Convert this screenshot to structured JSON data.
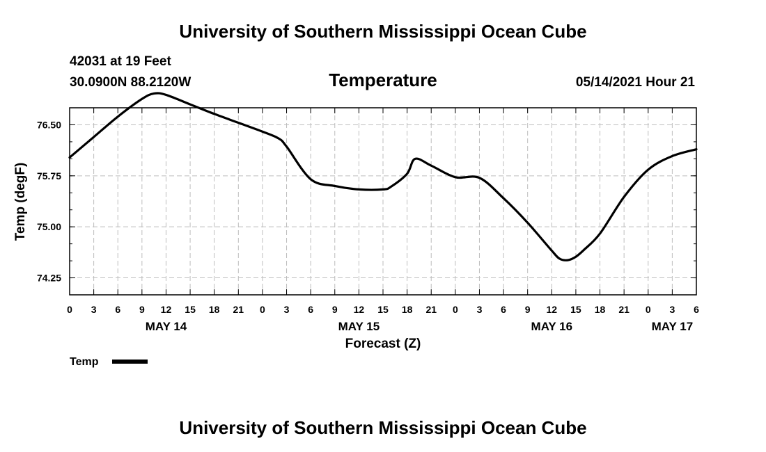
{
  "header": {
    "title_top": "University of Southern Mississippi Ocean Cube",
    "station": "42031 at 19 Feet",
    "coords": "30.0900N  88.2120W",
    "valid": "05/14/2021 Hour 21",
    "title_bottom": "University of Southern Mississippi Ocean Cube"
  },
  "chart_data": {
    "type": "line",
    "title": "Temperature",
    "xlabel": "Forecast (Z)",
    "ylabel": "Temp (degF)",
    "ylim": [
      74.0,
      76.75
    ],
    "xlim": [
      0,
      78
    ],
    "yticks": [
      74.25,
      75.0,
      75.75,
      76.5
    ],
    "ytick_labels": [
      "74.25",
      "75.00",
      "75.75",
      "76.50"
    ],
    "xtick_labels": [
      "0",
      "3",
      "6",
      "9",
      "12",
      "15",
      "18",
      "21",
      "0",
      "3",
      "6",
      "9",
      "12",
      "15",
      "18",
      "21",
      "0",
      "3",
      "6",
      "9",
      "12",
      "15",
      "18",
      "21",
      "0",
      "3",
      "6"
    ],
    "day_labels": [
      {
        "label": "MAY 14",
        "hour": 12
      },
      {
        "label": "MAY 15",
        "hour": 36
      },
      {
        "label": "MAY 16",
        "hour": 60
      },
      {
        "label": "MAY 17",
        "hour": 75
      }
    ],
    "grid": true,
    "legend_position": "bottom-left",
    "series": [
      {
        "name": "Temp",
        "color": "#000000",
        "x": [
          0,
          3,
          6,
          9,
          10.5,
          12,
          15,
          18,
          21,
          24,
          26,
          27,
          30,
          33,
          36,
          39,
          40,
          42,
          43,
          45,
          48,
          51,
          54,
          57,
          60,
          61,
          62,
          63,
          64,
          66,
          69,
          72,
          75,
          78
        ],
        "y": [
          76.02,
          76.32,
          76.62,
          76.88,
          76.96,
          76.94,
          76.8,
          76.66,
          76.53,
          76.4,
          76.3,
          76.18,
          75.7,
          75.6,
          75.55,
          75.55,
          75.59,
          75.78,
          76.0,
          75.9,
          75.73,
          75.72,
          75.42,
          75.06,
          74.65,
          74.53,
          74.51,
          74.56,
          74.66,
          74.9,
          75.44,
          75.84,
          76.04,
          76.14
        ]
      }
    ]
  }
}
